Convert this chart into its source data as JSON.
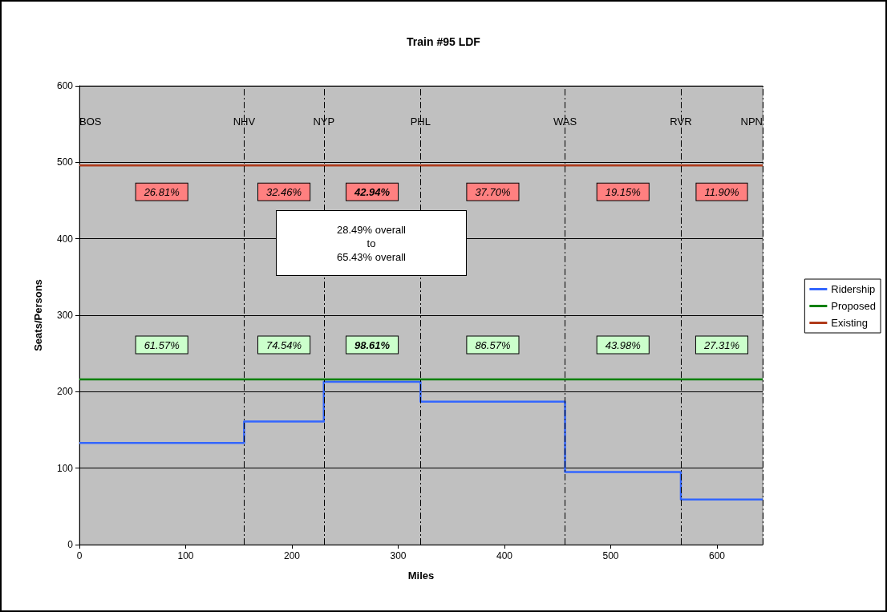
{
  "chart_data": {
    "type": "step",
    "title": "Train #95 LDF",
    "xlabel": "Miles",
    "ylabel": "Seats/Persons",
    "xlim": [
      0,
      643
    ],
    "xticks": [
      0,
      100,
      200,
      300,
      400,
      500,
      600
    ],
    "ylim": [
      0,
      600
    ],
    "yticks": [
      0,
      100,
      200,
      300,
      400,
      500,
      600
    ],
    "grid": "y",
    "legend": "right",
    "marker": "none",
    "series": [
      {
        "name": "Ridership",
        "color": "#3366ff",
        "x": [
          0,
          155,
          230,
          321,
          457,
          566,
          643
        ],
        "values": [
          133,
          161,
          213,
          187,
          95,
          59,
          59
        ]
      },
      {
        "name": "Proposed",
        "color": "#008000",
        "type": "line",
        "x": [
          0,
          643
        ],
        "values": [
          216,
          216
        ]
      },
      {
        "name": "Existing",
        "color": "#b03a1a",
        "type": "line",
        "x": [
          0,
          643
        ],
        "values": [
          496,
          496
        ]
      }
    ],
    "ref_lines": [
      {
        "axis": "x",
        "value": 0,
        "label": "BOS",
        "line_style": "dashed"
      },
      {
        "axis": "x",
        "value": 155,
        "label": "NHV",
        "line_style": "dashed"
      },
      {
        "axis": "x",
        "value": 230,
        "label": "NYP",
        "line_style": "dashed"
      },
      {
        "axis": "x",
        "value": 321,
        "label": "PHL",
        "line_style": "dashed"
      },
      {
        "axis": "x",
        "value": 457,
        "label": "WAS",
        "line_style": "dashed"
      },
      {
        "axis": "x",
        "value": 566,
        "label": "RVR",
        "line_style": "dashed"
      },
      {
        "axis": "x",
        "value": 643,
        "label": "NPN",
        "line_style": "dashed"
      }
    ],
    "annotations": [
      "26.81%",
      "32.46%",
      "42.94%",
      "37.70%",
      "19.15%",
      "11.90%",
      "61.57%",
      "74.54%",
      "98.61%",
      "86.57%",
      "43.98%",
      "27.31%",
      "28.49% overall\nto\n65.43% overall"
    ]
  }
}
